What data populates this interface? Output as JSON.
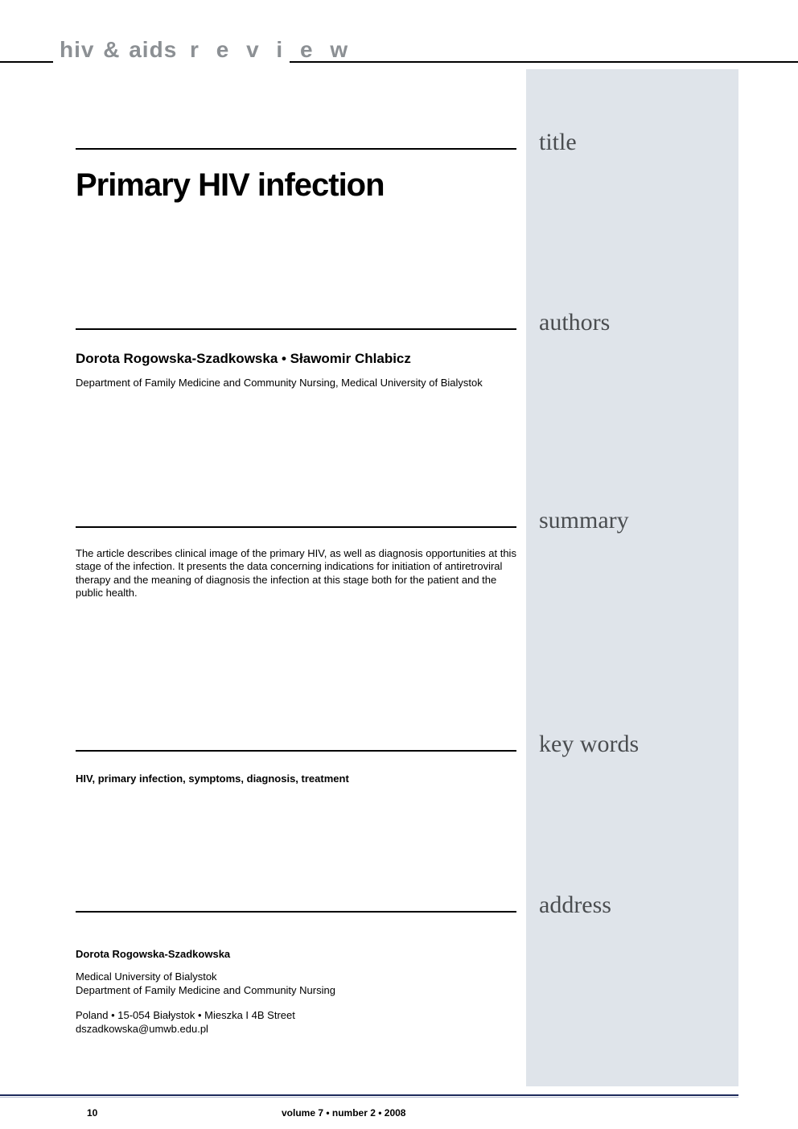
{
  "journal": {
    "name_part1": "hiv & aids",
    "name_part2": " r e v i e w"
  },
  "labels": {
    "title": "title",
    "authors": "authors",
    "summary": "summary",
    "keywords": "key words",
    "address": "address"
  },
  "article": {
    "title": "Primary HIV infection",
    "authors_line": "Dorota Rogowska-Szadkowska  •  Sławomir Chlabicz",
    "affiliation": "Department of Family Medicine and Community Nursing, Medical University of Bialystok",
    "summary": "The article describes clinical image of the primary HIV, as well as diagnosis opportunities at this stage of the infection. It presents the data concerning indications for initiation of antiretroviral therapy and the meaning of diagnosis the infection at this stage both for the patient and the public health.",
    "keywords": "HIV, primary infection, symptoms, diagnosis, treatment",
    "address": {
      "name": "Dorota Rogowska-Szadkowska",
      "institution": "Medical University of Bialystok\nDepartment of Family Medicine and Community Nursing",
      "postal": "Poland  •  15-054 Białystok  •  Mieszka I 4B Street\ndszadkowska@umwb.edu.pl"
    }
  },
  "footer": {
    "page": "10",
    "issue": "volume 7 • number 2 • 2008"
  },
  "colors": {
    "side_col_bg": "#dfe4ea",
    "side_label": "#4a4d50",
    "journal_name": "#8c9094",
    "footer_rule_dark": "#1d2a5b",
    "footer_rule_light": "#b7bfd2"
  }
}
